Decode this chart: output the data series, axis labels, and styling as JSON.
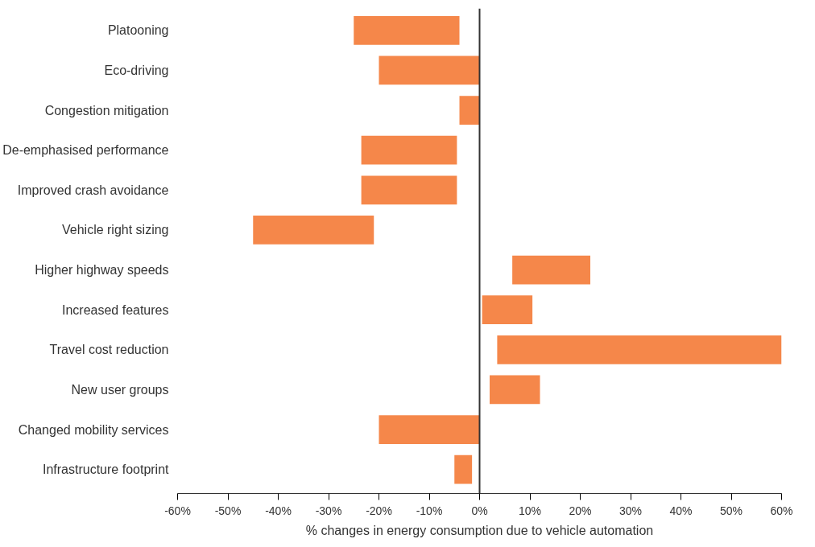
{
  "chart_data": {
    "type": "bar",
    "orientation": "horizontal",
    "xlabel": "% changes in energy consumption due to vehicle automation",
    "categories": [
      "Platooning",
      "Eco-driving",
      "Congestion mitigation",
      "De-emphasised performance",
      "Improved crash avoidance",
      "Vehicle right sizing",
      "Higher highway speeds",
      "Increased features",
      "Travel cost reduction",
      "New user groups",
      "Changed mobility services",
      "Infrastructure footprint"
    ],
    "base": [
      -25,
      -20,
      -4,
      -23.5,
      -23.5,
      -45,
      6.5,
      0.5,
      3.5,
      2,
      -20,
      -5
    ],
    "values": [
      21,
      20,
      4,
      19,
      19,
      24,
      15.5,
      10,
      56.5,
      10,
      20,
      3.5
    ],
    "color": "#f5874a",
    "xlim": [
      -60,
      60
    ],
    "xticks": [
      {
        "value": -60,
        "label": "-60%"
      },
      {
        "value": -50,
        "label": "-50%"
      },
      {
        "value": -40,
        "label": "-40%"
      },
      {
        "value": -30,
        "label": "-30%"
      },
      {
        "value": -20,
        "label": "-20%"
      },
      {
        "value": -10,
        "label": "-10%"
      },
      {
        "value": 0,
        "label": "0%"
      },
      {
        "value": 10,
        "label": "10%"
      },
      {
        "value": 20,
        "label": "20%"
      },
      {
        "value": 30,
        "label": "30%"
      },
      {
        "value": 40,
        "label": "40%"
      },
      {
        "value": 50,
        "label": "50%"
      },
      {
        "value": 60,
        "label": "60%"
      }
    ],
    "ref_lines": [
      {
        "axis": "x",
        "value": 0,
        "color": "#333333"
      }
    ],
    "grid": false
  }
}
